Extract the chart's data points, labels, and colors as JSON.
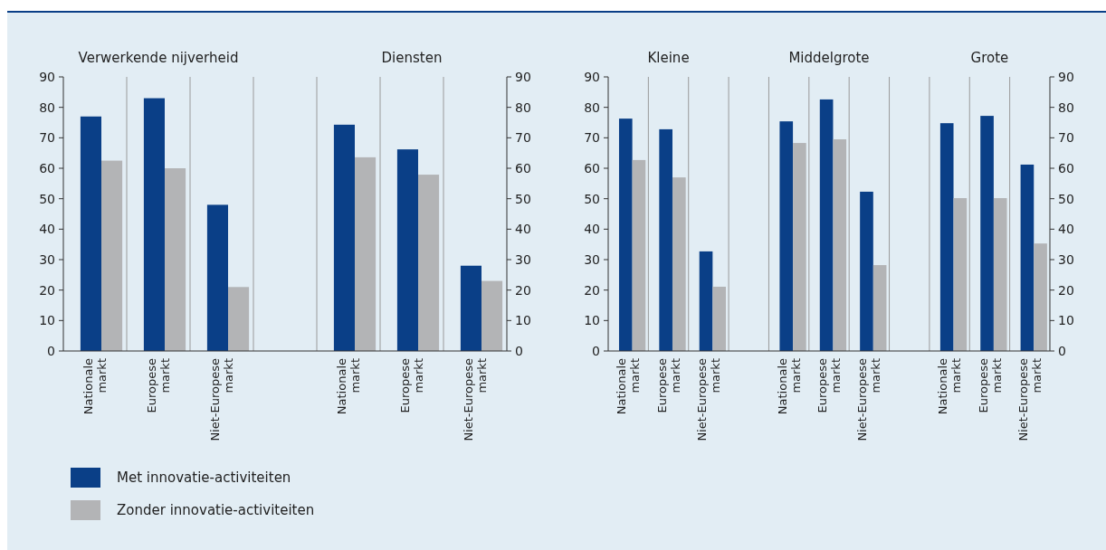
{
  "chart_data": [
    {
      "type": "bar",
      "categories": [
        "Nationale markt",
        "Europese markt",
        "Niet-Europese markt",
        null,
        "Nationale markt",
        "Europese markt",
        "Niet-Europese markt"
      ],
      "annotations": [
        "Verwerkende nijverheid",
        "Diensten"
      ],
      "series": [
        {
          "name": "Met innovatie-activiteiten",
          "color": "#0a3f87",
          "values": [
            77,
            83,
            48,
            null,
            74.3,
            66.2,
            28
          ]
        },
        {
          "name": "Zonder innovatie-activiteiten",
          "color": "#b3b4b6",
          "values": [
            62.5,
            60,
            21,
            null,
            63.6,
            57.9,
            23
          ]
        }
      ],
      "ylim": [
        0,
        90
      ],
      "yticks": [
        0,
        10,
        20,
        30,
        40,
        50,
        60,
        70,
        80,
        90
      ],
      "y2lim": [
        0,
        90
      ],
      "y2ticks": [
        0,
        10,
        20,
        30,
        40,
        50,
        60,
        70,
        80,
        90
      ],
      "grid": "x",
      "legend": "bottom"
    },
    {
      "type": "bar",
      "categories": [
        "Nationale markt",
        "Europese markt",
        "Niet-Europese markt",
        null,
        "Nationale markt",
        "Europese markt",
        "Niet-Europese markt",
        null,
        "Nationale markt",
        "Europese markt",
        "Niet-Europese markt"
      ],
      "annotations": [
        "Kleine",
        "Middelgrote",
        "Grote"
      ],
      "series": [
        {
          "color": "#0a3f87",
          "values": [
            76.3,
            72.8,
            32.7,
            null,
            75.4,
            82.6,
            52.3,
            null,
            74.8,
            77.2,
            61.2
          ]
        },
        {
          "color": "#b3b4b6",
          "values": [
            62.7,
            57,
            21.1,
            null,
            68.3,
            69.5,
            28.2,
            null,
            50.2,
            50.2,
            35.3
          ]
        }
      ],
      "ylim": [
        0,
        90
      ],
      "yticks": [
        0,
        10,
        20,
        30,
        40,
        50,
        60,
        70,
        80,
        90
      ],
      "y2lim": [
        0,
        90
      ],
      "y2ticks": [
        0,
        10,
        20,
        30,
        40,
        50,
        60,
        70,
        80,
        90
      ],
      "grid": "x"
    }
  ]
}
